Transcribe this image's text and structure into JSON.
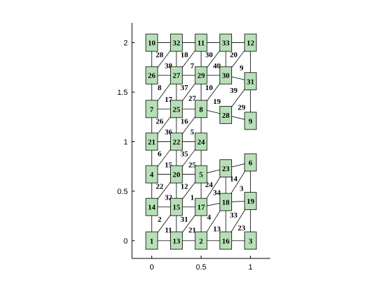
{
  "chart_data": {
    "type": "graph",
    "xlim": [
      -0.2,
      1.2
    ],
    "ylim": [
      -0.18,
      2.2
    ],
    "x_ticks": [
      {
        "value": 0,
        "label": "0"
      },
      {
        "value": 0.5,
        "label": "0.5"
      },
      {
        "value": 1,
        "label": "1"
      }
    ],
    "y_ticks": [
      {
        "value": 0,
        "label": "0"
      },
      {
        "value": 0.5,
        "label": "0.5"
      },
      {
        "value": 1,
        "label": "1"
      },
      {
        "value": 1.5,
        "label": "1.5"
      },
      {
        "value": 2,
        "label": "2"
      }
    ],
    "nodes": [
      {
        "id": "1",
        "x": 0.0,
        "y": 0.0
      },
      {
        "id": "13",
        "x": 0.25,
        "y": 0.0
      },
      {
        "id": "2",
        "x": 0.5,
        "y": 0.0
      },
      {
        "id": "16",
        "x": 0.75,
        "y": 0.0
      },
      {
        "id": "3",
        "x": 1.0,
        "y": 0.0
      },
      {
        "id": "14",
        "x": 0.0,
        "y": 0.34
      },
      {
        "id": "15",
        "x": 0.25,
        "y": 0.34
      },
      {
        "id": "17",
        "x": 0.5,
        "y": 0.34
      },
      {
        "id": "18",
        "x": 0.75,
        "y": 0.39
      },
      {
        "id": "19",
        "x": 1.0,
        "y": 0.4
      },
      {
        "id": "4",
        "x": 0.0,
        "y": 0.67
      },
      {
        "id": "20",
        "x": 0.25,
        "y": 0.67
      },
      {
        "id": "5",
        "x": 0.5,
        "y": 0.67
      },
      {
        "id": "23",
        "x": 0.75,
        "y": 0.73
      },
      {
        "id": "6",
        "x": 1.0,
        "y": 0.79
      },
      {
        "id": "21",
        "x": 0.0,
        "y": 1.0
      },
      {
        "id": "22",
        "x": 0.25,
        "y": 1.0
      },
      {
        "id": "24",
        "x": 0.5,
        "y": 1.0
      },
      {
        "id": "7",
        "x": 0.0,
        "y": 1.33
      },
      {
        "id": "25",
        "x": 0.25,
        "y": 1.33
      },
      {
        "id": "8",
        "x": 0.5,
        "y": 1.33
      },
      {
        "id": "28",
        "x": 0.75,
        "y": 1.27
      },
      {
        "id": "9",
        "x": 1.0,
        "y": 1.21
      },
      {
        "id": "26",
        "x": 0.0,
        "y": 1.67
      },
      {
        "id": "27",
        "x": 0.25,
        "y": 1.67
      },
      {
        "id": "29",
        "x": 0.5,
        "y": 1.67
      },
      {
        "id": "30",
        "x": 0.75,
        "y": 1.67
      },
      {
        "id": "31",
        "x": 1.0,
        "y": 1.61
      },
      {
        "id": "10",
        "x": 0.0,
        "y": 2.0
      },
      {
        "id": "32",
        "x": 0.25,
        "y": 2.0
      },
      {
        "id": "11",
        "x": 0.5,
        "y": 2.0
      },
      {
        "id": "33",
        "x": 0.75,
        "y": 2.0
      },
      {
        "id": "12",
        "x": 1.0,
        "y": 2.0
      }
    ],
    "edges": [
      [
        "1",
        "13"
      ],
      [
        "13",
        "2"
      ],
      [
        "2",
        "16"
      ],
      [
        "16",
        "3"
      ],
      [
        "14",
        "15"
      ],
      [
        "15",
        "17"
      ],
      [
        "17",
        "18"
      ],
      [
        "18",
        "19"
      ],
      [
        "4",
        "20"
      ],
      [
        "20",
        "5"
      ],
      [
        "5",
        "23"
      ],
      [
        "23",
        "6"
      ],
      [
        "21",
        "22"
      ],
      [
        "22",
        "24"
      ],
      [
        "7",
        "25"
      ],
      [
        "25",
        "8"
      ],
      [
        "8",
        "28"
      ],
      [
        "28",
        "9"
      ],
      [
        "26",
        "27"
      ],
      [
        "27",
        "29"
      ],
      [
        "29",
        "30"
      ],
      [
        "30",
        "31"
      ],
      [
        "10",
        "32"
      ],
      [
        "32",
        "11"
      ],
      [
        "11",
        "33"
      ],
      [
        "33",
        "12"
      ],
      [
        "1",
        "14"
      ],
      [
        "14",
        "4"
      ],
      [
        "4",
        "21"
      ],
      [
        "21",
        "7"
      ],
      [
        "7",
        "26"
      ],
      [
        "26",
        "10"
      ],
      [
        "13",
        "15"
      ],
      [
        "15",
        "20"
      ],
      [
        "20",
        "22"
      ],
      [
        "22",
        "25"
      ],
      [
        "25",
        "27"
      ],
      [
        "27",
        "32"
      ],
      [
        "2",
        "17"
      ],
      [
        "17",
        "5"
      ],
      [
        "5",
        "24"
      ],
      [
        "24",
        "8"
      ],
      [
        "8",
        "29"
      ],
      [
        "29",
        "11"
      ],
      [
        "16",
        "18"
      ],
      [
        "18",
        "23"
      ],
      [
        "30",
        "33"
      ],
      [
        "3",
        "19"
      ],
      [
        "19",
        "6"
      ],
      [
        "9",
        "31"
      ],
      [
        "31",
        "12"
      ],
      [
        "1",
        "15"
      ],
      [
        "13",
        "17"
      ],
      [
        "2",
        "18"
      ],
      [
        "16",
        "19"
      ],
      [
        "14",
        "20"
      ],
      [
        "15",
        "5"
      ],
      [
        "17",
        "23"
      ],
      [
        "18",
        "6"
      ],
      [
        "4",
        "22"
      ],
      [
        "20",
        "24"
      ],
      [
        "21",
        "25"
      ],
      [
        "22",
        "8"
      ],
      [
        "7",
        "27"
      ],
      [
        "25",
        "29"
      ],
      [
        "8",
        "30"
      ],
      [
        "28",
        "31"
      ],
      [
        "26",
        "32"
      ],
      [
        "27",
        "11"
      ],
      [
        "29",
        "33"
      ],
      [
        "30",
        "12"
      ]
    ],
    "edge_labels": [
      {
        "text": "28",
        "x": 0.08,
        "y": 1.88
      },
      {
        "text": "18",
        "x": 0.33,
        "y": 1.88
      },
      {
        "text": "30",
        "x": 0.58,
        "y": 1.88
      },
      {
        "text": "20",
        "x": 0.83,
        "y": 1.88
      },
      {
        "text": "38",
        "x": 0.17,
        "y": 1.77
      },
      {
        "text": "7",
        "x": 0.41,
        "y": 1.77
      },
      {
        "text": "40",
        "x": 0.66,
        "y": 1.77
      },
      {
        "text": "9",
        "x": 0.91,
        "y": 1.75
      },
      {
        "text": "8",
        "x": 0.08,
        "y": 1.55
      },
      {
        "text": "37",
        "x": 0.33,
        "y": 1.55
      },
      {
        "text": "10",
        "x": 0.58,
        "y": 1.55
      },
      {
        "text": "39",
        "x": 0.83,
        "y": 1.52
      },
      {
        "text": "17",
        "x": 0.17,
        "y": 1.43
      },
      {
        "text": "27",
        "x": 0.41,
        "y": 1.44
      },
      {
        "text": "19",
        "x": 0.66,
        "y": 1.41
      },
      {
        "text": "29",
        "x": 0.91,
        "y": 1.35
      },
      {
        "text": "26",
        "x": 0.08,
        "y": 1.21
      },
      {
        "text": "16",
        "x": 0.33,
        "y": 1.21
      },
      {
        "text": "36",
        "x": 0.17,
        "y": 1.1
      },
      {
        "text": "5",
        "x": 0.41,
        "y": 1.1
      },
      {
        "text": "6",
        "x": 0.08,
        "y": 0.88
      },
      {
        "text": "35",
        "x": 0.33,
        "y": 0.88
      },
      {
        "text": "15",
        "x": 0.17,
        "y": 0.77
      },
      {
        "text": "25",
        "x": 0.41,
        "y": 0.77
      },
      {
        "text": "22",
        "x": 0.08,
        "y": 0.55
      },
      {
        "text": "12",
        "x": 0.33,
        "y": 0.55
      },
      {
        "text": "24",
        "x": 0.58,
        "y": 0.57
      },
      {
        "text": "14",
        "x": 0.83,
        "y": 0.63
      },
      {
        "text": "32",
        "x": 0.17,
        "y": 0.44
      },
      {
        "text": "1",
        "x": 0.41,
        "y": 0.44
      },
      {
        "text": "34",
        "x": 0.66,
        "y": 0.49
      },
      {
        "text": "3",
        "x": 0.91,
        "y": 0.53
      },
      {
        "text": "2",
        "x": 0.08,
        "y": 0.22
      },
      {
        "text": "31",
        "x": 0.33,
        "y": 0.22
      },
      {
        "text": "4",
        "x": 0.58,
        "y": 0.24
      },
      {
        "text": "33",
        "x": 0.83,
        "y": 0.26
      },
      {
        "text": "11",
        "x": 0.17,
        "y": 0.11
      },
      {
        "text": "21",
        "x": 0.41,
        "y": 0.11
      },
      {
        "text": "13",
        "x": 0.66,
        "y": 0.12
      },
      {
        "text": "23",
        "x": 0.91,
        "y": 0.13
      }
    ],
    "node_color": "#b8e0b8"
  }
}
